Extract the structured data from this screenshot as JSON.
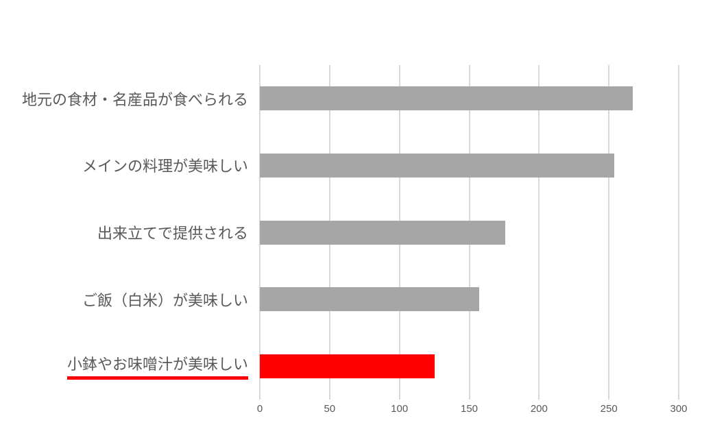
{
  "chart_data": {
    "type": "bar",
    "orientation": "horizontal",
    "title": "",
    "xlabel": "",
    "ylabel": "",
    "categories": [
      "地元の食材・名産品が食べられる",
      "メインの料理が美味しい",
      "出来立てで提供される",
      "ご飯（白米）が美味しい",
      "小鉢やお味噌汁が美味しい"
    ],
    "values": [
      267,
      254,
      176,
      157,
      125
    ],
    "xlim": [
      0,
      300
    ],
    "x_ticks": [
      0,
      50,
      100,
      150,
      200,
      250,
      300
    ],
    "grid": true,
    "legend": false,
    "bar_colors": [
      "#a6a6a6",
      "#a6a6a6",
      "#a6a6a6",
      "#a6a6a6",
      "#ff0000"
    ],
    "highlight_index": 4,
    "highlight_underline_color": "#ff0000",
    "colors": {
      "background": "#ffffff",
      "gridline": "#d9d9d9",
      "category_text": "#595959",
      "tick_text": "#595959"
    }
  }
}
